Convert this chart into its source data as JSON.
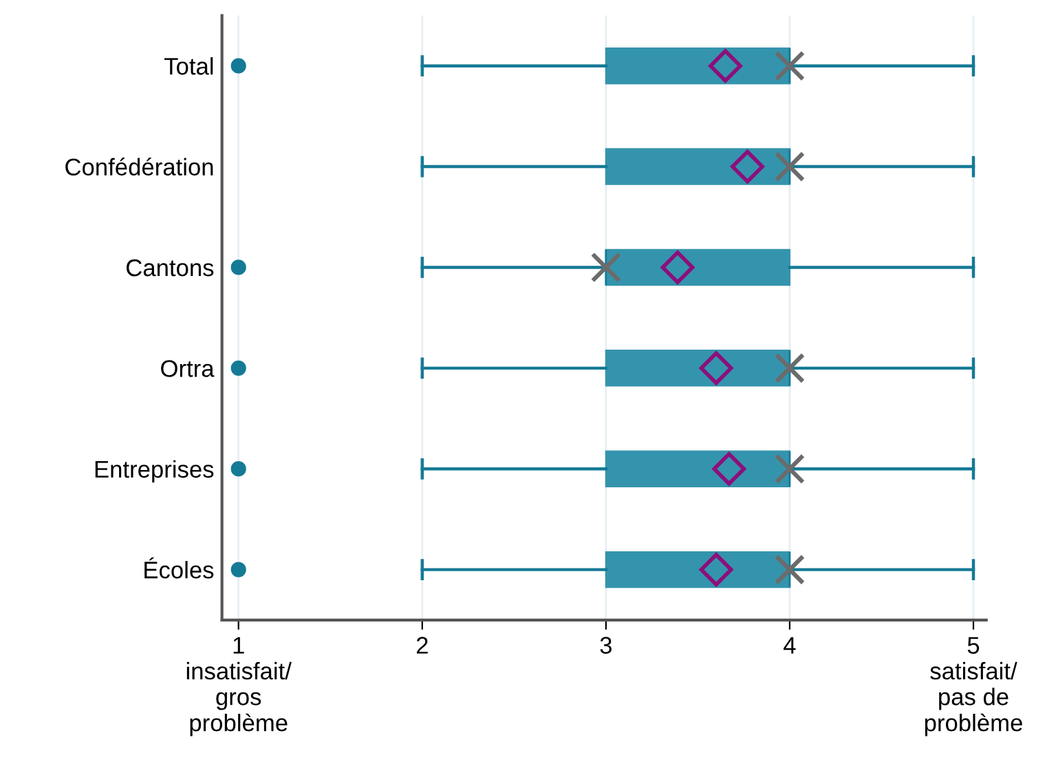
{
  "chart_data": {
    "type": "box",
    "orientation": "horizontal",
    "categories": [
      "Total",
      "Confédération",
      "Cantons",
      "Ortra",
      "Entreprises",
      "Écoles"
    ],
    "color": "#3594ad",
    "boxes": [
      {
        "low": 2,
        "q1": 3,
        "median": 4,
        "q3": 4,
        "high": 5,
        "mean": 3.65,
        "outliers": [
          1
        ]
      },
      {
        "low": 2,
        "q1": 3,
        "median": 4,
        "q3": 4,
        "high": 5,
        "mean": 3.77
      },
      {
        "low": 2,
        "q1": 3,
        "median": 3,
        "q3": 4,
        "high": 5,
        "mean": 3.39,
        "outliers": [
          1
        ]
      },
      {
        "low": 2,
        "q1": 3,
        "median": 4,
        "q3": 4,
        "high": 5,
        "mean": 3.6,
        "outliers": [
          1
        ]
      },
      {
        "low": 2,
        "q1": 3,
        "median": 4,
        "q3": 4,
        "high": 5,
        "mean": 3.67,
        "outliers": [
          1
        ]
      },
      {
        "low": 2,
        "q1": 3,
        "median": 4,
        "q3": 4,
        "high": 5,
        "mean": 3.6,
        "outliers": [
          1
        ]
      }
    ],
    "series": [
      {
        "type": "scatter",
        "marker": "cross",
        "color": "#6b6b6b",
        "x": [
          "Total",
          "Confédération",
          "Cantons",
          "Ortra",
          "Entreprises",
          "Écoles"
        ],
        "values": [
          4,
          4,
          3,
          4,
          4,
          4
        ]
      }
    ],
    "xlim": [
      0.91,
      5.07
    ],
    "xticks": [
      {
        "value": 1,
        "label": "1\ninsatisfait/\ngros\nproblème"
      },
      2,
      3,
      4,
      {
        "value": 5,
        "label": "5\nsatisfait/\npas de\nproblème"
      }
    ],
    "grid": "x",
    "legend": false
  }
}
